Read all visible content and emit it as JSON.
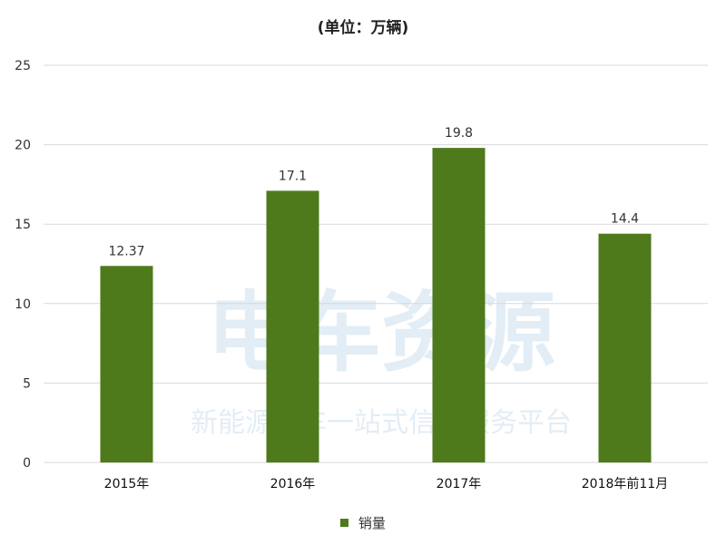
{
  "chart_data": {
    "type": "bar",
    "title": "(单位：万辆)",
    "categories": [
      "2015年",
      "2016年",
      "2017年",
      "2018年前11月"
    ],
    "series": [
      {
        "name": "销量",
        "values": [
          12.37,
          17.1,
          19.8,
          14.4
        ],
        "color": "#4e7a1c"
      }
    ],
    "ylim": [
      0,
      25
    ],
    "yticks": [
      0,
      5,
      10,
      15,
      20,
      25
    ],
    "grid": true,
    "legend_position": "bottom",
    "gridline_color": "#d9d9d9"
  },
  "watermark": "电车资源 新能源汽车一站式信息服务平台"
}
